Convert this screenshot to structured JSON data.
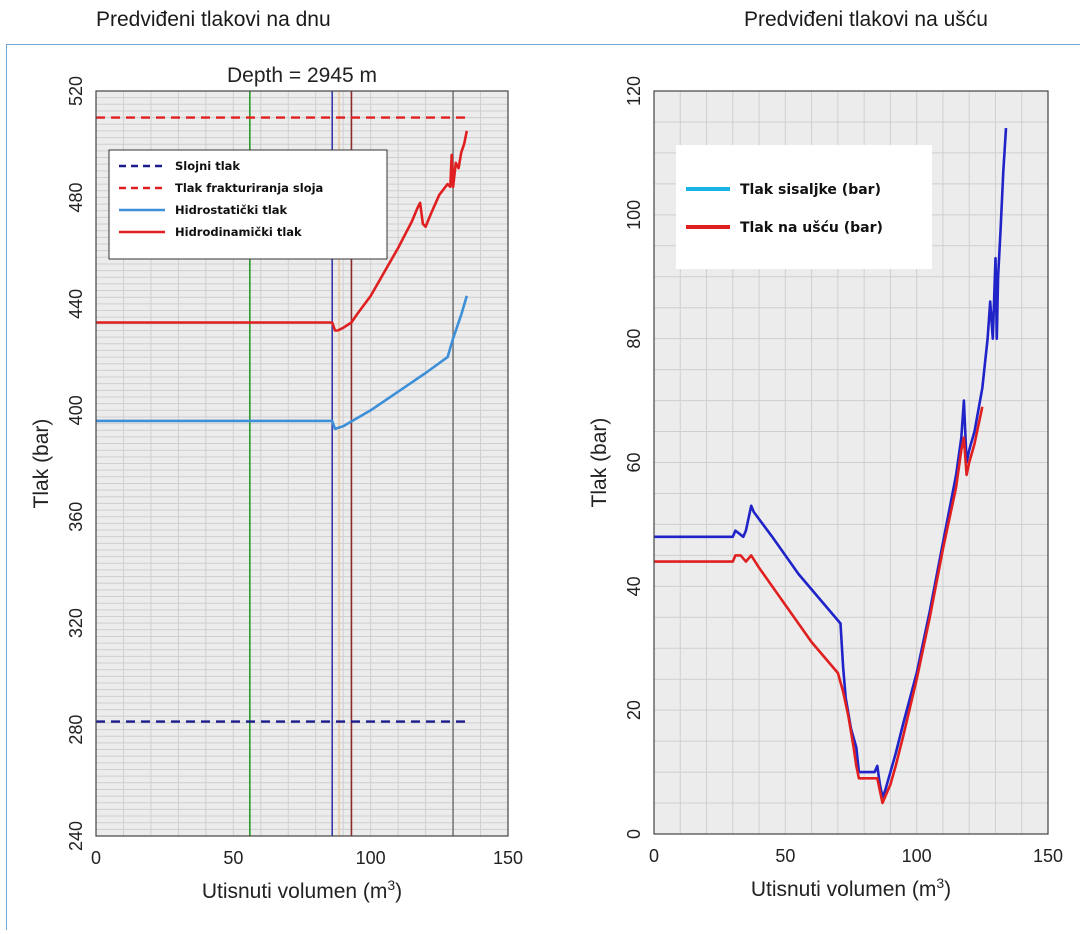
{
  "headings": {
    "left": "Predviđeni tlakovi na dnu",
    "right": "Predviđeni tlakovi na ušću"
  },
  "colors": {
    "grid_bg": "#ececec",
    "grid_line": "#cfcfcf",
    "dark_blue": "#1c1c8c",
    "red": "#e02020",
    "light_blue": "#3d8fd8",
    "blue": "#1f23c8",
    "green": "#2a9a2a",
    "brown": "#8b2c2c",
    "purple": "#3a3aa8",
    "gray": "#7a7a7a",
    "legend_cyan": "#18b4e8"
  },
  "chart_data": [
    {
      "type": "line",
      "title": "Depth =  2945 m",
      "xlabel": "Utisnuti volumen (m",
      "xlabel_sup": "3",
      "xlabel_close": ")",
      "ylabel": "Tlak (bar)",
      "xlim": [
        0,
        150
      ],
      "ylim": [
        240,
        520
      ],
      "x_ticks": [
        "0",
        "50",
        "100",
        "150"
      ],
      "y_ticks": [
        "240",
        "280",
        "320",
        "360",
        "400",
        "440",
        "480",
        "520"
      ],
      "legend_position": "top-left",
      "vertical_markers": [
        {
          "x": 56,
          "color": "#2a9a2a"
        },
        {
          "x": 86,
          "color": "#3a3aa8"
        },
        {
          "x": 88.5,
          "color": "#e8c8a8"
        },
        {
          "x": 93,
          "color": "#8b2c2c"
        },
        {
          "x": 130,
          "color": "#7a7a7a"
        }
      ],
      "series": [
        {
          "name": "Slojni tlak",
          "style": "dashed",
          "color": "#1c1c8c",
          "x": [
            0,
            135
          ],
          "y": [
            283,
            283
          ]
        },
        {
          "name": "Tlak frakturiranja sloja",
          "style": "dashed",
          "color": "#e02020",
          "x": [
            0,
            135
          ],
          "y": [
            510,
            510
          ]
        },
        {
          "name": "Hidrostatički tlak",
          "style": "solid",
          "color": "#3d8fd8",
          "x": [
            0,
            86,
            87,
            90,
            95,
            100,
            110,
            120,
            128,
            130,
            133,
            135
          ],
          "y": [
            396,
            396,
            393,
            394,
            397,
            400,
            407,
            414,
            420,
            427,
            436,
            443
          ]
        },
        {
          "name": "Hidrodinamički tlak",
          "style": "solid",
          "color": "#e02020",
          "x": [
            0,
            86,
            87,
            88,
            90,
            93,
            95,
            100,
            105,
            110,
            115,
            117,
            118,
            119,
            120,
            122,
            125,
            128,
            129,
            129.5,
            130,
            131,
            132,
            133,
            134,
            135
          ],
          "y": [
            433,
            433,
            430,
            430,
            431,
            433,
            436,
            443,
            452,
            461,
            471,
            476,
            478,
            470,
            469,
            474,
            481,
            485,
            484,
            496,
            484,
            493,
            491,
            497,
            500,
            505
          ]
        }
      ]
    },
    {
      "type": "line",
      "title": "",
      "xlabel": "Utisnuti volumen (m",
      "xlabel_sup": "3",
      "xlabel_close": ")",
      "ylabel": "Tlak (bar)",
      "xlim": [
        0,
        150
      ],
      "ylim": [
        0,
        120
      ],
      "x_ticks": [
        "0",
        "50",
        "100",
        "150"
      ],
      "y_ticks": [
        "0",
        "20",
        "40",
        "60",
        "80",
        "100",
        "120"
      ],
      "legend_position": "top-left",
      "legend_colors": [
        "#18b4e8",
        "#e02020"
      ],
      "series": [
        {
          "name": "Tlak sisaljke (bar)",
          "color": "#1f23c8",
          "x": [
            0,
            30,
            31,
            34,
            35,
            37,
            38,
            45,
            55,
            65,
            71,
            72,
            73,
            75,
            77,
            78,
            80,
            84,
            85,
            86,
            87,
            88,
            90,
            92,
            95,
            100,
            105,
            110,
            115,
            117,
            118,
            119,
            120,
            122,
            125,
            127,
            128,
            129,
            130,
            130.5,
            131,
            132,
            133,
            134
          ],
          "y": [
            48,
            48,
            49,
            48,
            49,
            53,
            52,
            48,
            42,
            37,
            34,
            27,
            22,
            17,
            14,
            10,
            10,
            10,
            11,
            8,
            6,
            7,
            10,
            13,
            18,
            26,
            36,
            47,
            58,
            64,
            70,
            60,
            62,
            65,
            72,
            80,
            86,
            80,
            93,
            80,
            90,
            98,
            107,
            114
          ]
        },
        {
          "name": "Tlak na ušću (bar)",
          "color": "#e02020",
          "x": [
            0,
            30,
            31,
            33,
            35,
            37,
            40,
            50,
            60,
            70,
            72,
            74,
            76,
            77,
            78,
            82,
            85,
            86,
            87,
            88,
            90,
            92,
            95,
            100,
            105,
            110,
            115,
            117,
            118,
            119,
            120,
            122,
            125
          ],
          "y": [
            44,
            44,
            45,
            45,
            44,
            45,
            43,
            37,
            31,
            26,
            23,
            19,
            14,
            11,
            9,
            9,
            9,
            7,
            5,
            6,
            8,
            11,
            16,
            25,
            35,
            46,
            56,
            62,
            64,
            58,
            60,
            63,
            69
          ]
        }
      ]
    }
  ]
}
